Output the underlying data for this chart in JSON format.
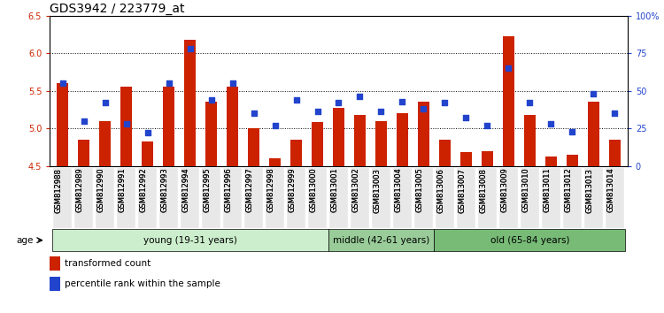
{
  "title": "GDS3942 / 223779_at",
  "categories": [
    "GSM812988",
    "GSM812989",
    "GSM812990",
    "GSM812991",
    "GSM812992",
    "GSM812993",
    "GSM812994",
    "GSM812995",
    "GSM812996",
    "GSM812997",
    "GSM812998",
    "GSM812999",
    "GSM813000",
    "GSM813001",
    "GSM813002",
    "GSM813003",
    "GSM813004",
    "GSM813005",
    "GSM813006",
    "GSM813007",
    "GSM813008",
    "GSM813009",
    "GSM813010",
    "GSM813011",
    "GSM813012",
    "GSM813013",
    "GSM813014"
  ],
  "bar_values": [
    5.6,
    4.85,
    5.1,
    5.55,
    4.82,
    5.55,
    6.18,
    5.35,
    5.55,
    5.0,
    4.6,
    4.85,
    5.08,
    5.27,
    5.18,
    5.1,
    5.2,
    5.35,
    4.85,
    4.68,
    4.7,
    6.22,
    5.18,
    4.62,
    4.65,
    5.35,
    4.85
  ],
  "dot_values": [
    55,
    30,
    42,
    28,
    22,
    55,
    78,
    44,
    55,
    35,
    27,
    44,
    36,
    42,
    46,
    36,
    43,
    38,
    42,
    32,
    27,
    65,
    42,
    28,
    23,
    48,
    35
  ],
  "ylim_left": [
    4.5,
    6.5
  ],
  "ylim_right": [
    0,
    100
  ],
  "yticks_left": [
    4.5,
    5.0,
    5.5,
    6.0,
    6.5
  ],
  "yticks_right": [
    0,
    25,
    50,
    75,
    100
  ],
  "ytick_labels_right": [
    "0",
    "25",
    "50",
    "75",
    "100%"
  ],
  "bar_color": "#cc2200",
  "dot_color": "#2244cc",
  "bar_width": 0.55,
  "groups": [
    {
      "label": "young (19-31 years)",
      "start": 0,
      "end": 13,
      "color": "#cceecc"
    },
    {
      "label": "middle (42-61 years)",
      "start": 13,
      "end": 18,
      "color": "#99cc99"
    },
    {
      "label": "old (65-84 years)",
      "start": 18,
      "end": 27,
      "color": "#77bb77"
    }
  ],
  "legend_items": [
    {
      "label": "transformed count",
      "color": "#cc2200"
    },
    {
      "label": "percentile rank within the sample",
      "color": "#2244cc"
    }
  ],
  "age_label": "age",
  "background_color": "#ffffff",
  "title_fontsize": 10,
  "tick_fontsize": 7,
  "label_fontsize": 6,
  "axis_label_color_left": "#cc2200",
  "axis_label_color_right": "#2244cc"
}
